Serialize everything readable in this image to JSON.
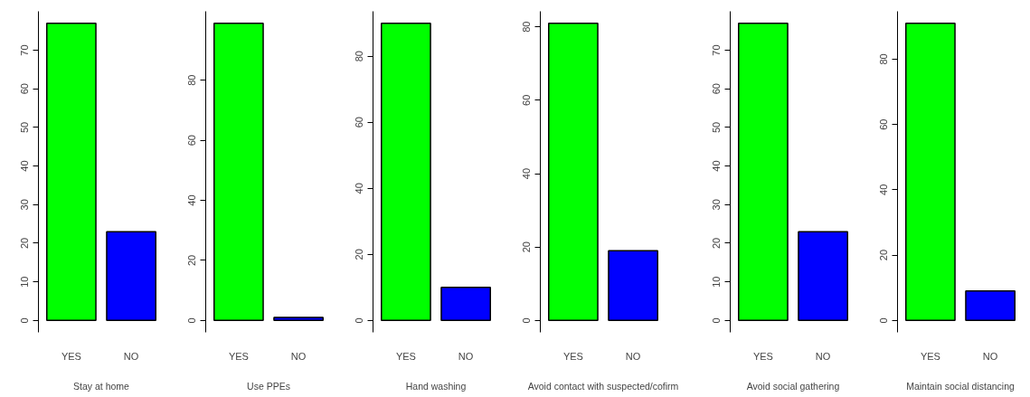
{
  "chart_data": [
    {
      "type": "bar",
      "categories": [
        "YES",
        "NO"
      ],
      "values": [
        77,
        23
      ],
      "colors": [
        "#00ff00",
        "#0000ff"
      ],
      "xlabel": "Stay at home",
      "ylim": [
        0,
        77
      ],
      "yticks": [
        0,
        10,
        20,
        30,
        40,
        50,
        60,
        70
      ],
      "grid": false
    },
    {
      "type": "bar",
      "categories": [
        "YES",
        "NO"
      ],
      "values": [
        99,
        1
      ],
      "colors": [
        "#00ff00",
        "#0000ff"
      ],
      "xlabel": "Use PPEs",
      "ylim": [
        0,
        99
      ],
      "yticks": [
        0,
        20,
        40,
        60,
        80
      ],
      "grid": false
    },
    {
      "type": "bar",
      "categories": [
        "YES",
        "NO"
      ],
      "values": [
        90,
        10
      ],
      "colors": [
        "#00ff00",
        "#0000ff"
      ],
      "xlabel": "Hand washing",
      "ylim": [
        0,
        90
      ],
      "yticks": [
        0,
        20,
        40,
        60,
        80
      ],
      "grid": false
    },
    {
      "type": "bar",
      "categories": [
        "YES",
        "NO"
      ],
      "values": [
        81,
        19
      ],
      "colors": [
        "#00ff00",
        "#0000ff"
      ],
      "xlabel": "Avoid contact with suspected/cofirm",
      "ylim": [
        0,
        81
      ],
      "yticks": [
        0,
        20,
        40,
        60,
        80
      ],
      "grid": false
    },
    {
      "type": "bar",
      "categories": [
        "YES",
        "NO"
      ],
      "values": [
        77,
        23
      ],
      "colors": [
        "#00ff00",
        "#0000ff"
      ],
      "xlabel": "Avoid social gathering",
      "ylim": [
        0,
        77
      ],
      "yticks": [
        0,
        10,
        20,
        30,
        40,
        50,
        60,
        70
      ],
      "grid": false
    },
    {
      "type": "bar",
      "categories": [
        "YES",
        "NO"
      ],
      "values": [
        91,
        9
      ],
      "colors": [
        "#00ff00",
        "#0000ff"
      ],
      "xlabel": "Maintain social distancing",
      "ylim": [
        0,
        91
      ],
      "yticks": [
        0,
        20,
        40,
        60,
        80
      ],
      "grid": false
    }
  ]
}
